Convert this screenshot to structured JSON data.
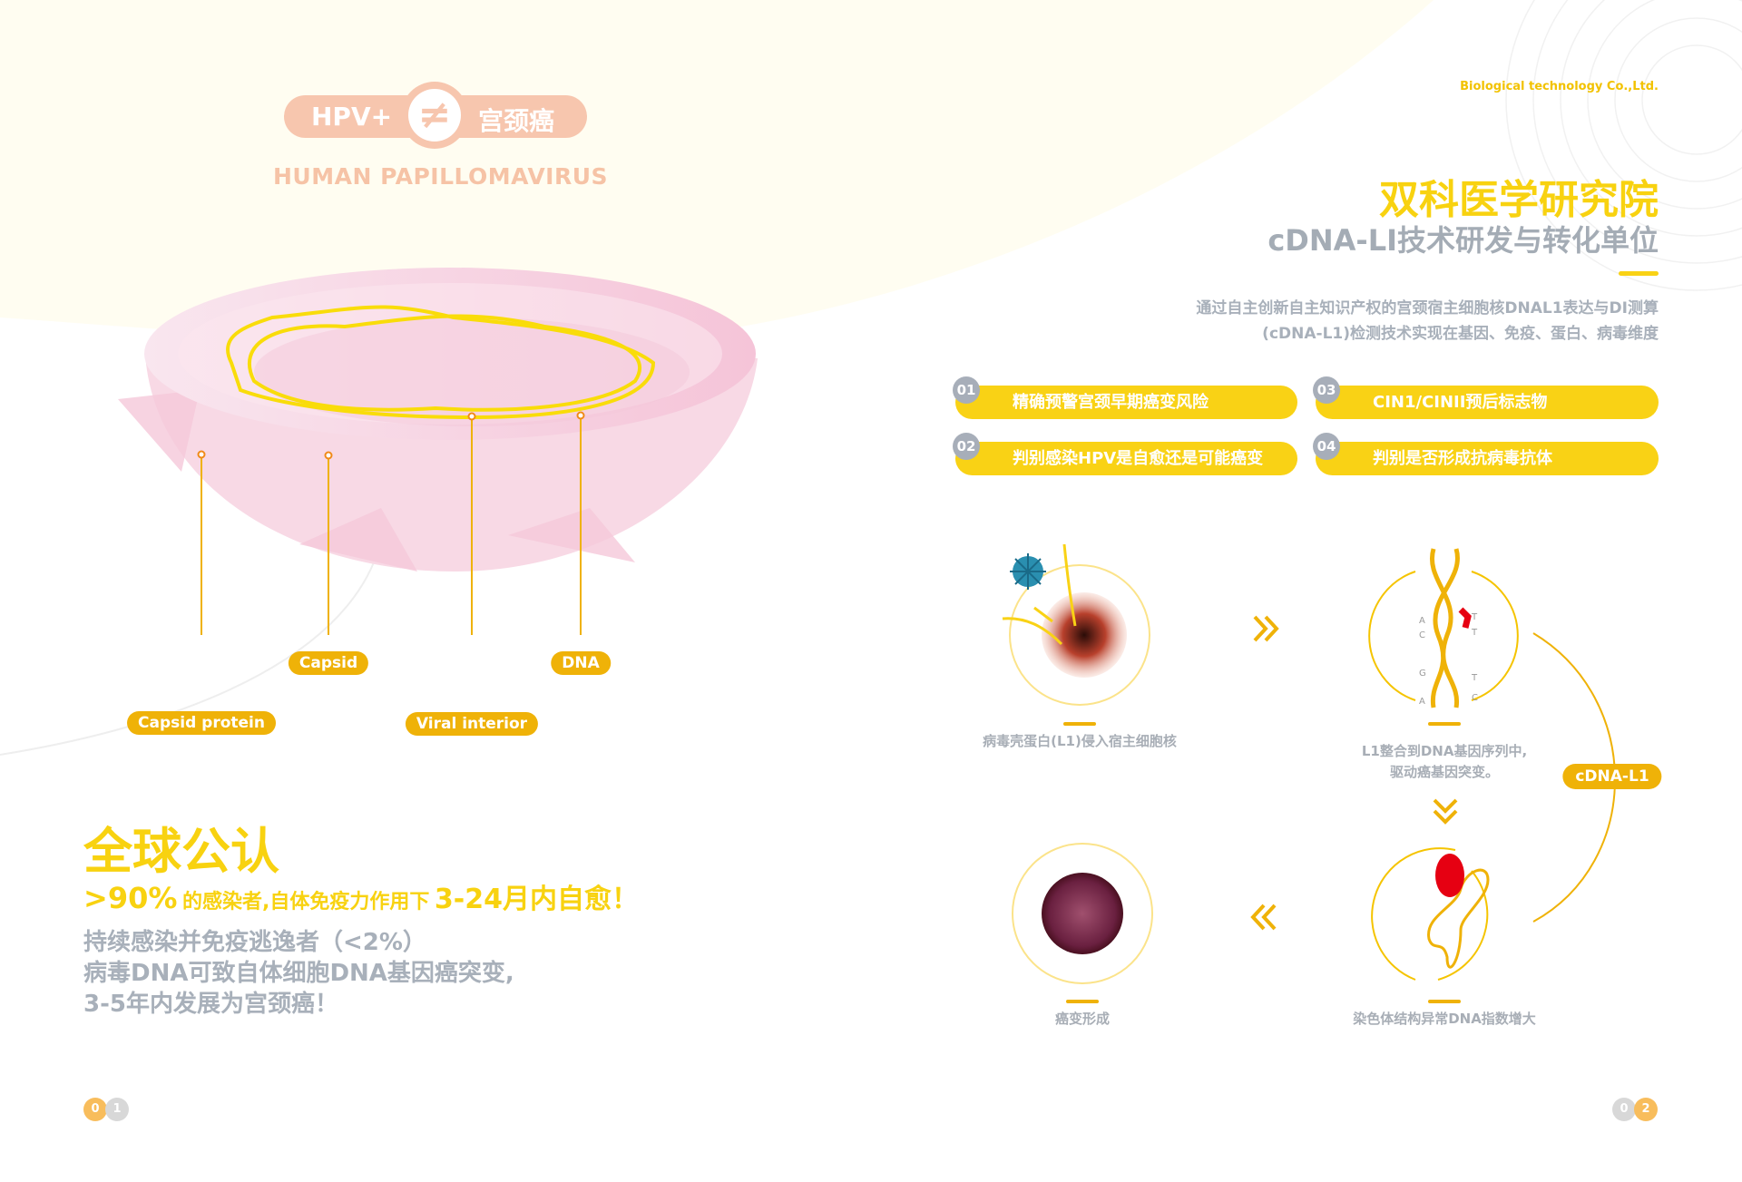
{
  "colors": {
    "yellow": "#f8d210",
    "orange": "#efb208",
    "gray": "#a8b0ba",
    "peach": "#f7c6ae",
    "pink": "#f6d3e1"
  },
  "left": {
    "badge": {
      "left": "HPV+",
      "symbol": "≠",
      "right": "宫颈癌"
    },
    "subtitle": "HUMAN  PAPILLOMAVIRUS",
    "labels": {
      "capsid_protein": "Capsid  protein",
      "capsid": "Capsid",
      "viral_interior": "Viral  interior",
      "dna": "DNA"
    },
    "headline": "全球公认",
    "stat": {
      "percent": ">90%",
      "middle": "的感染者,自体免疫力作用下",
      "highlight": "3-24月内自愈！"
    },
    "body": [
      "持续感染并免疫逃逸者（<2%）",
      "病毒DNA可致自体细胞DNA基因癌突变,",
      "3-5年内发展为宫颈癌！"
    ],
    "page": [
      "0",
      "1"
    ]
  },
  "right": {
    "company": "Biological  technology Co.,Ltd.",
    "title": "双科医学研究院",
    "subtitle": "cDNA-LI技术研发与转化单位",
    "description": [
      "通过自主创新自主知识产权的宫颈宿主细胞核DNAL1表达与DI测算",
      "(cDNA-L1)检测技术实现在基因、免疫、蛋白、病毒维度"
    ],
    "features": [
      {
        "num": "01",
        "text": "精确预警宫颈早期癌变风险"
      },
      {
        "num": "02",
        "text": "判别感染HPV是自愈还是可能癌变"
      },
      {
        "num": "03",
        "text": "CIN1/CINII预后标志物"
      },
      {
        "num": "04",
        "text": "判别是否形成抗病毒抗体"
      }
    ],
    "steps": [
      {
        "caption": "病毒壳蛋白(L1)侵入宿主细胞核"
      },
      {
        "caption": "L1整合到DNA基因序列中,",
        "caption2": "驱动癌基因突变。",
        "bases": [
          "A",
          "C",
          "G",
          "A",
          "T",
          "T",
          "T",
          "C"
        ]
      },
      {
        "caption": "染色体结构异常DNA指数增大"
      },
      {
        "caption": "癌变形成"
      }
    ],
    "cycle_label": "cDNA-L1",
    "page": [
      "0",
      "2"
    ]
  }
}
